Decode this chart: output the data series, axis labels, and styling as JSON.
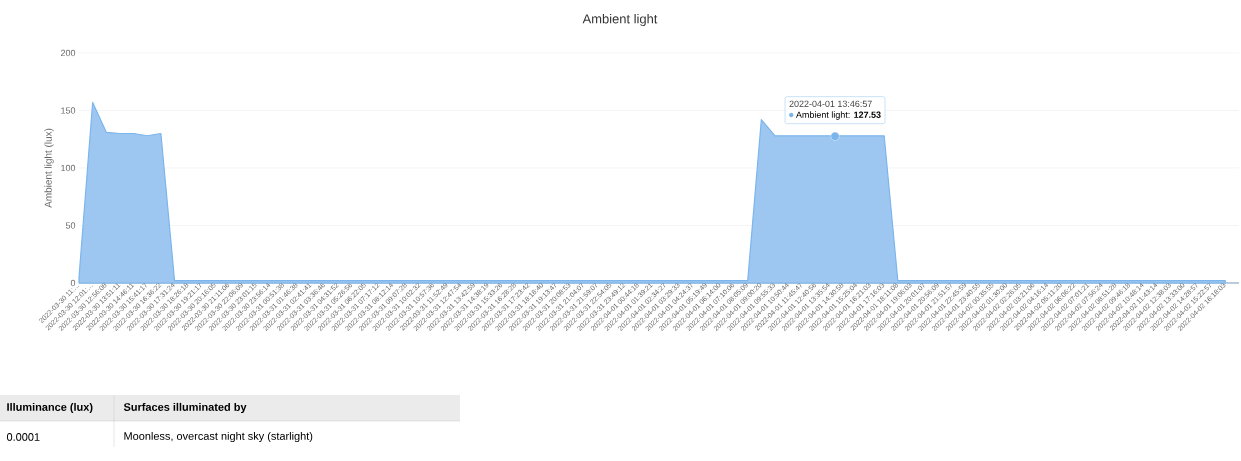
{
  "chart_data": {
    "type": "area",
    "title": "Ambient light",
    "ylabel": "Ambient light (lux)",
    "categories": [
      "2022-03-30 11:…",
      "2022-03-30 12:01:…",
      "2022-03-30 12:56:08",
      "2022-03-30 13:51:11",
      "2022-03-30 14:46:11",
      "2022-03-30 15:41:17",
      "2022-03-30 16:36:22",
      "2022-03-30 17:31:24",
      "2022-03-30 18:26:18",
      "2022-03-30 19:21:17",
      "2022-03-30 20:16:05",
      "2022-03-30 21:11:06",
      "2022-03-30 22:06:09",
      "2022-03-30 23:01:15",
      "2022-03-30 23:56:14",
      "2022-03-31 00:51:38",
      "2022-03-31 01:46:38",
      "2022-03-31 02:41:41",
      "2022-03-31 03:36:46",
      "2022-03-31 04:31:52",
      "2022-03-31 05:26:56",
      "2022-03-31 06:22:05",
      "2022-03-31 07:17:12",
      "2022-03-31 08:12:14",
      "2022-03-31 09:07:28",
      "2022-03-31 10:02:32",
      "2022-03-31 10:57:36",
      "2022-03-31 11:52:49",
      "2022-03-31 12:47:54",
      "2022-03-31 13:42:59",
      "2022-03-31 14:38:19",
      "2022-03-31 15:33:26",
      "2022-03-31 16:28:28",
      "2022-03-31 17:23:42",
      "2022-03-31 18:18:40",
      "2022-03-31 19:13:47",
      "2022-03-31 20:08:53",
      "2022-03-31 21:04:07",
      "2022-03-31 21:59:07",
      "2022-03-31 22:54:05",
      "2022-03-31 23:49:12",
      "2022-04-01 00:44:18",
      "2022-04-01 01:39:21",
      "2022-04-01 02:34:27",
      "2022-04-01 03:29:33",
      "2022-04-01 04:24:37",
      "2022-04-01 05:19:49",
      "2022-04-01 06:14:00",
      "2022-04-01 07:10:06",
      "2022-04-01 08:05:09",
      "2022-04-01 09:00:20",
      "2022-04-01 09:55:33",
      "2022-04-01 10:50:44",
      "2022-04-01 11:45:47",
      "2022-04-01 12:40:56",
      "2022-04-01 13:35:54",
      "2022-04-01 14:30:58",
      "2022-04-01 15:25:04",
      "2022-04-01 16:21:03",
      "2022-04-01 17:16:03",
      "2022-04-01 18:11:08",
      "2022-04-01 19:06:03",
      "2022-04-01 20:01:07",
      "2022-04-01 20:56:09",
      "2022-04-01 21:51:57",
      "2022-04-01 22:45:59",
      "2022-04-01 23:40:55",
      "2022-04-02 00:35:55",
      "2022-04-02 01:30:00",
      "2022-04-02 02:26:05",
      "2022-04-02 03:21:06",
      "2022-04-02 04:16:14",
      "2022-04-02 05:11:20",
      "2022-04-02 06:06:22",
      "2022-04-02 07:01:21",
      "2022-04-02 07:56:24",
      "2022-04-02 08:51:28",
      "2022-04-02 09:46:18",
      "2022-04-02 10:48:14",
      "2022-04-02 11:43:14",
      "2022-04-02 12:38:03",
      "2022-04-02 13:33:00",
      "2022-04-02 14:28:57",
      "2022-04-02 15:22:57",
      "2022-04-02 16:18:03"
    ],
    "values": [
      5,
      157,
      131,
      130,
      130,
      128,
      130,
      2,
      2,
      2,
      2,
      2,
      2,
      2,
      2,
      2,
      2,
      2,
      2,
      2,
      2,
      2,
      2,
      2,
      2,
      2,
      2,
      2,
      2,
      2,
      2,
      2,
      2,
      2,
      2,
      2,
      2,
      2,
      2,
      2,
      2,
      2,
      2,
      2,
      2,
      2,
      2,
      2,
      2,
      2,
      142,
      128,
      128,
      128,
      128,
      128,
      128,
      128,
      128,
      128,
      2,
      2,
      2,
      2,
      2,
      2,
      2,
      2,
      2,
      2,
      2,
      2,
      2,
      2,
      2,
      2,
      2,
      2,
      2,
      2,
      2,
      2,
      2,
      2,
      2
    ],
    "color": "#7cb5ec",
    "ylim": [
      0,
      200
    ],
    "yticks": [
      0,
      50,
      100,
      150,
      200
    ],
    "grid": "y",
    "annotations": [
      "2022-04-01 13:46:57",
      {
        "text": "Ambient light: **127.53**",
        "y": 127.53
      },
      "Illuminance (lux)",
      "Surfaces illuminated by",
      "0.0001",
      "Moonless, overcast night sky (starlight)"
    ]
  }
}
